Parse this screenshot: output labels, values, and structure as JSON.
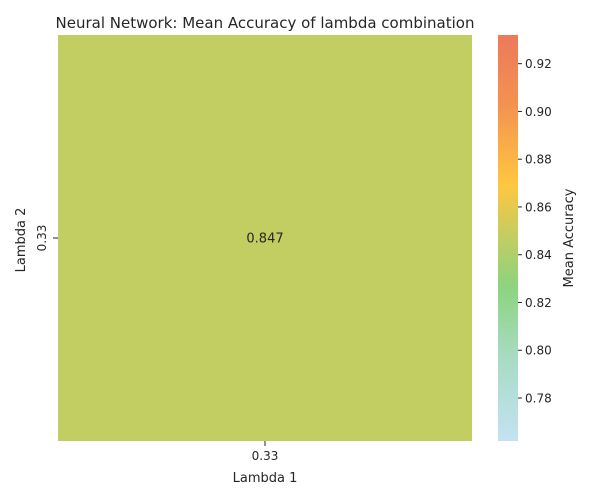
{
  "chart_data": {
    "type": "heatmap",
    "title": "Neural Network: Mean Accuracy of lambda combination",
    "xlabel": "Lambda 1",
    "ylabel": "Lambda 2",
    "x_categories": [
      "0.33"
    ],
    "y_categories": [
      "0.33"
    ],
    "values": [
      [
        0.847
      ]
    ],
    "value_labels": [
      [
        "0.847"
      ]
    ],
    "colorbar": {
      "label": "Mean Accuracy",
      "range": [
        0.762,
        0.932
      ],
      "ticks": [
        0.78,
        0.8,
        0.82,
        0.84,
        0.86,
        0.88,
        0.9,
        0.92
      ],
      "tick_labels": [
        "0.78",
        "0.80",
        "0.82",
        "0.84",
        "0.86",
        "0.88",
        "0.90",
        "0.92"
      ],
      "colors": [
        "#c4e2f3",
        "#a8dcc5",
        "#8dd37f",
        "#c2cd62",
        "#fec740",
        "#f49151",
        "#ec7a5b"
      ],
      "color_positions": [
        0.0,
        0.2,
        0.38,
        0.5,
        0.63,
        0.83,
        1.0
      ]
    },
    "grid": false
  }
}
